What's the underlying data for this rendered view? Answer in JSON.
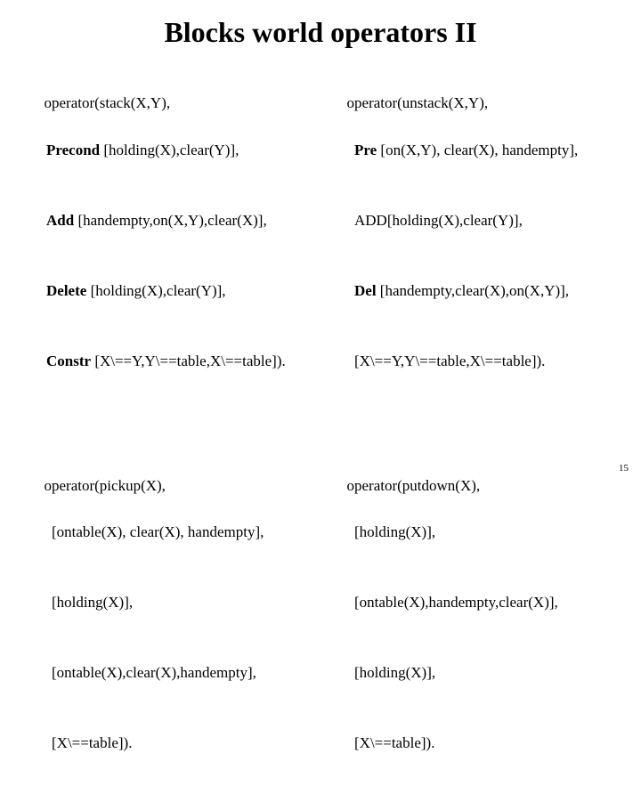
{
  "title": "Blocks world operators II",
  "page_number": "15",
  "colors": {
    "background": "#ffffff",
    "text": "#000000"
  },
  "typography": {
    "title_fontsize": 32,
    "body_fontsize": 17,
    "font_family": "Times New Roman"
  },
  "operators": {
    "stack": {
      "head": "operator(stack(X,Y),",
      "precond_kw": "Precond",
      "precond_rest": " [holding(X),clear(Y)],",
      "add_kw": "Add",
      "add_rest": " [handempty,on(X,Y),clear(X)],",
      "delete_kw": "Delete",
      "delete_rest": " [holding(X),clear(Y)],",
      "constr_kw": "Constr",
      "constr_rest": " [X\\==Y,Y\\==table,X\\==table])."
    },
    "unstack": {
      "head": "operator(unstack(X,Y),",
      "pre_kw": "Pre",
      "pre_rest": " [on(X,Y), clear(X), handempty],",
      "add_label": "ADD[holding(X),clear(Y)],",
      "del_kw": "Del",
      "del_rest": " [handempty,clear(X),on(X,Y)],",
      "constr": "[X\\==Y,Y\\==table,X\\==table])."
    },
    "pickup": {
      "head": "operator(pickup(X),",
      "l1": "[ontable(X), clear(X), handempty],",
      "l2": "[holding(X)],",
      "l3": "[ontable(X),clear(X),handempty],",
      "l4": "[X\\==table])."
    },
    "putdown": {
      "head": "operator(putdown(X),",
      "l1": "[holding(X)],",
      "l2": "[ontable(X),handempty,clear(X)],",
      "l3": "[holding(X)],",
      "l4": "[X\\==table])."
    }
  }
}
